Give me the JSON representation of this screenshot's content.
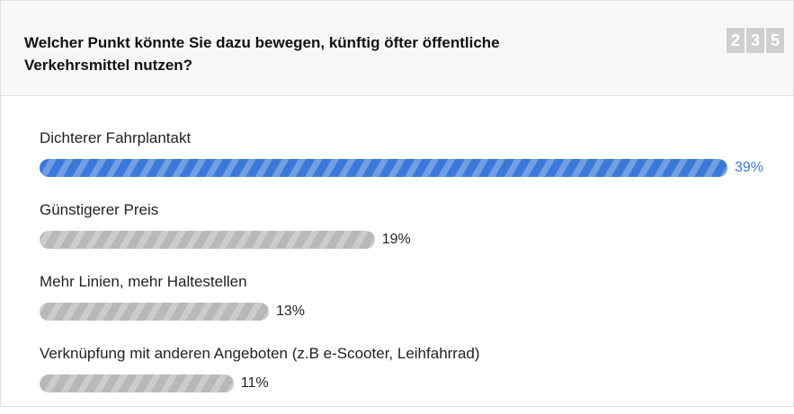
{
  "chart_data": {
    "type": "bar",
    "orientation": "horizontal",
    "title": "Welcher Punkt könnte Sie dazu bewegen, künftig öfter öffentliche Verkehrsmittel nutzen?",
    "counter_digits": [
      "2",
      "3",
      "5"
    ],
    "categories": [
      "Dichterer Fahrplantakt",
      "Günstigerer Preis",
      "Mehr Linien, mehr Haltestellen",
      "Verknüpfung mit anderen Angeboten (z.B e-Scooter, Leihfahrrad)"
    ],
    "values": [
      39,
      19,
      13,
      11
    ],
    "value_labels": [
      "39%",
      "19%",
      "13%",
      "11%"
    ],
    "colors": [
      "#3b79d9",
      "#b8b8b8",
      "#b8b8b8",
      "#b8b8b8"
    ],
    "label_colors": [
      "#3b79d9",
      "#222222",
      "#222222",
      "#222222"
    ]
  }
}
